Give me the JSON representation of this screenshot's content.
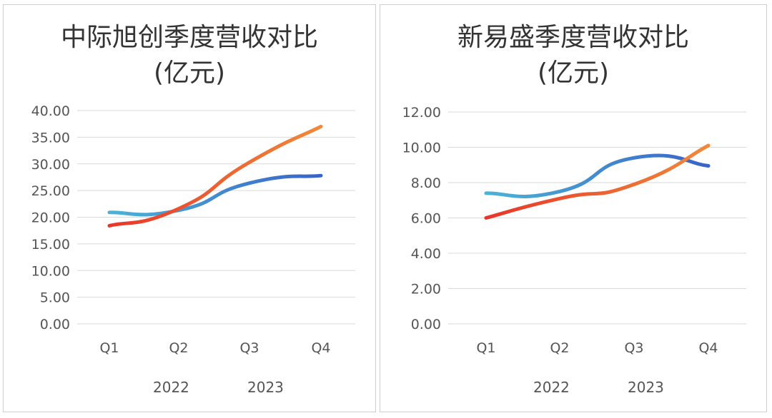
{
  "chart_data": [
    {
      "type": "line",
      "title_line1": "中际旭创季度营收对比",
      "title_line2": "(亿元)",
      "categories": [
        "Q1",
        "Q2",
        "Q3",
        "Q4"
      ],
      "ylim": [
        0,
        40
      ],
      "yticks": [
        0,
        5,
        10,
        15,
        20,
        25,
        30,
        35,
        40
      ],
      "ytick_labels": [
        "0.00",
        "5.00",
        "10.00",
        "15.00",
        "20.00",
        "25.00",
        "30.00",
        "35.00",
        "40.00"
      ],
      "grid": true,
      "legend_position": "bottom",
      "series": [
        {
          "name": "2022",
          "values": [
            20.9,
            21.3,
            26.4,
            27.8
          ],
          "color_start": "#4bb3d6",
          "color_end": "#3a63c8"
        },
        {
          "name": "2023",
          "values": [
            18.4,
            21.6,
            30.3,
            37.0
          ],
          "color_start": "#e8362a",
          "color_end": "#f08a3a"
        }
      ]
    },
    {
      "type": "line",
      "title_line1": "新易盛季度营收对比",
      "title_line2": "(亿元)",
      "categories": [
        "Q1",
        "Q2",
        "Q3",
        "Q4"
      ],
      "ylim": [
        0,
        12
      ],
      "yticks": [
        0,
        2,
        4,
        6,
        8,
        10,
        12
      ],
      "ytick_labels": [
        "0.00",
        "2.00",
        "4.00",
        "6.00",
        "8.00",
        "10.00",
        "12.00"
      ],
      "grid": true,
      "legend_position": "bottom",
      "series": [
        {
          "name": "2022",
          "values": [
            7.4,
            7.5,
            9.4,
            8.95
          ],
          "color_start": "#4bb3d6",
          "color_end": "#3a63c8"
        },
        {
          "name": "2023",
          "values": [
            6.0,
            7.1,
            7.9,
            10.1
          ],
          "color_start": "#e8362a",
          "color_end": "#f08a3a"
        }
      ]
    }
  ]
}
